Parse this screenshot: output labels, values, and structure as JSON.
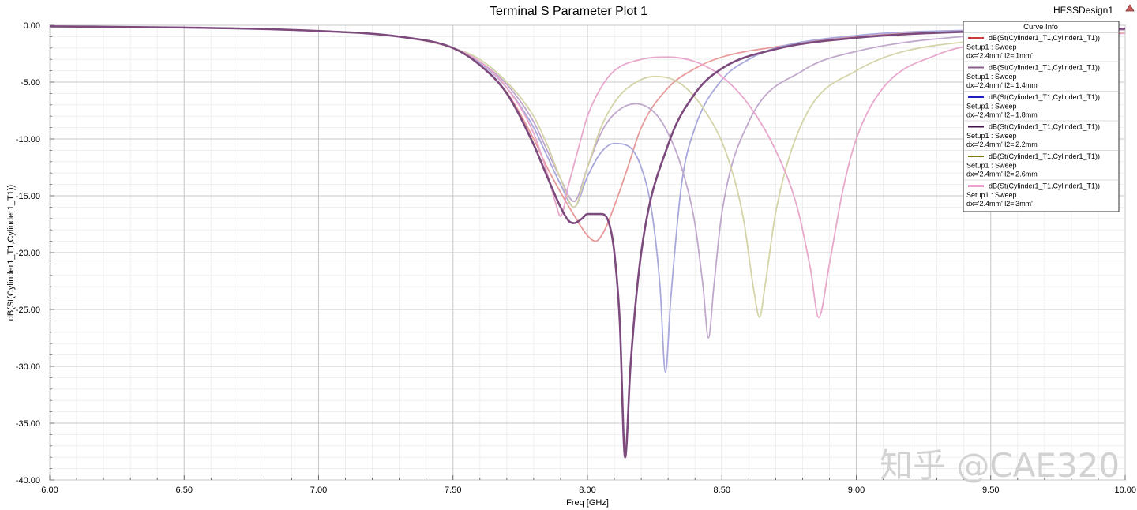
{
  "window": {
    "title": "Terminal S Parameter Plot 1",
    "design": "HFSSDesign1"
  },
  "watermark": "知乎 @CAE320",
  "legend": {
    "title": "Curve Info",
    "items": [
      {
        "line1": "dB(St(Cylinder1_T1,Cylinder1_T1))",
        "line2": "Setup1 : Sweep",
        "line3": "dx='2.4mm' l2='1mm'",
        "color": "#d03838"
      },
      {
        "line1": "dB(St(Cylinder1_T1,Cylinder1_T1))",
        "line2": "Setup1 : Sweep",
        "line3": "dx='2.4mm' l2='1.4mm'",
        "color": "#8a5a8a"
      },
      {
        "line1": "dB(St(Cylinder1_T1,Cylinder1_T1))",
        "line2": "Setup1 : Sweep",
        "line3": "dx='2.4mm' l2='1.8mm'",
        "color": "#1c1cc0"
      },
      {
        "line1": "dB(St(Cylinder1_T1,Cylinder1_T1))",
        "line2": "Setup1 : Sweep",
        "line3": "dx='2.4mm' l2='2.2mm'",
        "color": "#3c1448"
      },
      {
        "line1": "dB(St(Cylinder1_T1,Cylinder1_T1))",
        "line2": "Setup1 : Sweep",
        "line3": "dx='2.4mm' l2='2.6mm'",
        "color": "#7a7a10"
      },
      {
        "line1": "dB(St(Cylinder1_T1,Cylinder1_T1))",
        "line2": "Setup1 : Sweep",
        "line3": "dx='2.4mm' l2='3mm'",
        "color": "#d84a98"
      }
    ]
  },
  "chart_data": {
    "type": "line",
    "title": "Terminal S Parameter Plot 1",
    "xlabel": "Freq [GHz]",
    "ylabel": "dB(St(Cylinder1_T1,Cylinder1_T1))",
    "xlim": [
      6.0,
      10.0
    ],
    "ylim": [
      -40.0,
      0.0
    ],
    "grid": true,
    "legend_position": "top-right",
    "xticks": [
      "6.00",
      "6.50",
      "7.00",
      "7.50",
      "8.00",
      "8.50",
      "9.00",
      "9.50",
      "10.00"
    ],
    "yticks": [
      "0.00",
      "-5.00",
      "-10.00",
      "-15.00",
      "-20.00",
      "-25.00",
      "-30.00",
      "-35.00",
      "-40.00"
    ],
    "series": [
      {
        "name": "dx='2.4mm' l2='1mm'",
        "color": "#e89a9a",
        "x": [
          6.0,
          6.5,
          7.0,
          7.3,
          7.5,
          7.6,
          7.7,
          7.8,
          7.85,
          7.9,
          7.95,
          8.0,
          8.03,
          8.06,
          8.1,
          8.15,
          8.2,
          8.3,
          8.4,
          8.5,
          8.7,
          9.0,
          9.5,
          10.0
        ],
        "y": [
          -0.1,
          -0.2,
          -0.5,
          -1.0,
          -2.0,
          -3.5,
          -5.9,
          -10.0,
          -12.5,
          -14.7,
          -16.7,
          -18.5,
          -19.0,
          -18.2,
          -15.9,
          -12.5,
          -9.0,
          -5.5,
          -3.8,
          -2.8,
          -1.9,
          -1.0,
          -0.5,
          -0.3
        ]
      },
      {
        "name": "dx='2.4mm' l2='1.4mm'",
        "color": "#7c4a7c",
        "x": [
          6.0,
          6.5,
          7.0,
          7.3,
          7.5,
          7.6,
          7.7,
          7.8,
          7.85,
          7.9,
          7.93,
          7.95,
          7.98,
          8.0,
          8.05,
          8.08,
          8.1,
          8.12,
          8.14,
          8.16,
          8.2,
          8.3,
          8.4,
          8.5,
          8.7,
          9.0,
          9.5,
          10.0
        ],
        "y": [
          -0.1,
          -0.2,
          -0.5,
          -1.0,
          -2.0,
          -3.5,
          -6.0,
          -10.5,
          -13.3,
          -16.0,
          -17.2,
          -17.4,
          -17.0,
          -16.6,
          -16.6,
          -17.4,
          -20.0,
          -26.0,
          -38.0,
          -30.0,
          -20.0,
          -10.5,
          -6.0,
          -3.8,
          -2.1,
          -1.1,
          -0.5,
          -0.3
        ]
      },
      {
        "name": "dx='2.4mm' l2='1.8mm'",
        "color": "#a8a8dc",
        "x": [
          6.0,
          6.5,
          7.0,
          7.3,
          7.5,
          7.6,
          7.7,
          7.8,
          7.85,
          7.9,
          7.95,
          8.0,
          8.05,
          8.1,
          8.15,
          8.2,
          8.24,
          8.27,
          8.29,
          8.31,
          8.35,
          8.4,
          8.5,
          8.6,
          8.7,
          9.0,
          9.5,
          10.0
        ],
        "y": [
          -0.1,
          -0.2,
          -0.5,
          -1.0,
          -2.0,
          -3.3,
          -5.5,
          -9.0,
          -11.5,
          -14.0,
          -16.0,
          -13.3,
          -11.2,
          -10.4,
          -10.6,
          -12.5,
          -16.5,
          -23.0,
          -30.5,
          -24.0,
          -14.0,
          -9.0,
          -4.8,
          -3.0,
          -2.0,
          -0.9,
          -0.4,
          -0.3
        ]
      },
      {
        "name": "dx='2.4mm' l2='2.2mm'",
        "color": "#c0a8cc",
        "x": [
          6.0,
          6.5,
          7.0,
          7.3,
          7.5,
          7.6,
          7.7,
          7.8,
          7.85,
          7.9,
          7.95,
          8.0,
          8.05,
          8.1,
          8.18,
          8.25,
          8.3,
          8.35,
          8.4,
          8.43,
          8.45,
          8.47,
          8.5,
          8.6,
          8.8,
          9.0,
          9.5,
          10.0
        ],
        "y": [
          -0.1,
          -0.2,
          -0.5,
          -1.0,
          -2.0,
          -3.2,
          -5.2,
          -8.5,
          -11.0,
          -13.5,
          -15.5,
          -12.5,
          -9.5,
          -7.8,
          -6.9,
          -7.7,
          -9.5,
          -12.5,
          -17.5,
          -23.0,
          -27.5,
          -23.0,
          -16.5,
          -8.5,
          -4.0,
          -2.3,
          -0.8,
          -0.4
        ]
      },
      {
        "name": "dx='2.4mm' l2='2.6mm'",
        "color": "#d4d4a8",
        "x": [
          6.0,
          6.5,
          7.0,
          7.3,
          7.5,
          7.6,
          7.7,
          7.8,
          7.85,
          7.9,
          7.95,
          8.0,
          8.05,
          8.1,
          8.15,
          8.25,
          8.35,
          8.45,
          8.52,
          8.58,
          8.62,
          8.64,
          8.66,
          8.7,
          8.8,
          9.0,
          9.5,
          10.0
        ],
        "y": [
          -0.1,
          -0.2,
          -0.5,
          -1.0,
          -2.0,
          -3.0,
          -5.0,
          -8.0,
          -10.5,
          -13.5,
          -16.0,
          -12.5,
          -9.0,
          -6.8,
          -5.5,
          -4.5,
          -5.2,
          -8.0,
          -11.5,
          -17.0,
          -23.5,
          -25.7,
          -23.0,
          -16.5,
          -8.5,
          -4.0,
          -1.2,
          -0.6
        ]
      },
      {
        "name": "dx='2.4mm' l2='3mm'",
        "color": "#e8a8cc",
        "x": [
          6.0,
          6.5,
          7.0,
          7.3,
          7.5,
          7.6,
          7.7,
          7.8,
          7.85,
          7.88,
          7.9,
          7.93,
          7.97,
          8.0,
          8.05,
          8.1,
          8.2,
          8.3,
          8.4,
          8.5,
          8.6,
          8.7,
          8.78,
          8.83,
          8.86,
          8.9,
          8.95,
          9.0,
          9.1,
          9.3,
          9.5,
          10.0
        ],
        "y": [
          -0.1,
          -0.2,
          -0.5,
          -1.0,
          -2.0,
          -3.2,
          -5.5,
          -9.5,
          -13.0,
          -15.5,
          -16.8,
          -14.0,
          -10.5,
          -8.0,
          -5.5,
          -4.0,
          -3.0,
          -2.8,
          -3.2,
          -4.5,
          -7.0,
          -11.0,
          -16.0,
          -21.5,
          -25.7,
          -21.0,
          -14.5,
          -10.0,
          -5.5,
          -2.6,
          -1.5,
          -0.7
        ]
      }
    ]
  }
}
